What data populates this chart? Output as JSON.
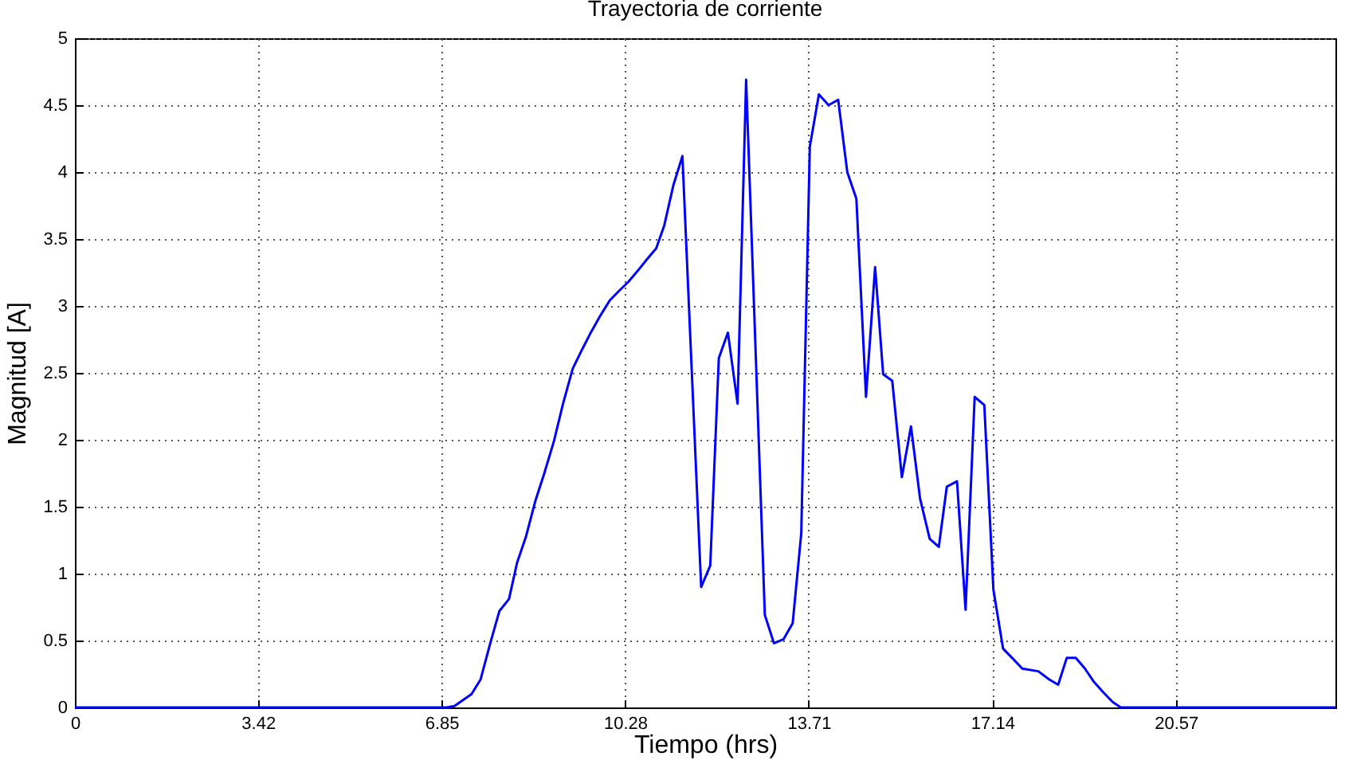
{
  "chart_data": {
    "type": "line",
    "title": "Trayectoria de corriente",
    "xlabel": "Tiempo (hrs)",
    "ylabel": "Magnitud [A]",
    "x": [
      0,
      6.94,
      7.09,
      7.41,
      7.58,
      7.76,
      7.93,
      8.11,
      8.26,
      8.43,
      8.6,
      8.77,
      8.95,
      9.12,
      9.3,
      9.47,
      9.65,
      9.82,
      9.99,
      10.16,
      10.34,
      10.51,
      10.69,
      10.86,
      11.01,
      11.18,
      11.35,
      11.7,
      11.87,
      12.03,
      12.2,
      12.38,
      12.54,
      12.89,
      13.06,
      13.24,
      13.41,
      13.57,
      13.73,
      13.9,
      14.08,
      14.26,
      14.43,
      14.6,
      14.78,
      14.95,
      15.1,
      15.27,
      15.45,
      15.62,
      15.79,
      15.97,
      16.14,
      16.29,
      16.48,
      16.64,
      16.81,
      16.99,
      17.16,
      17.34,
      17.51,
      17.7,
      18.0,
      18.2,
      18.37,
      18.53,
      18.7,
      18.87,
      19.04,
      19.22,
      19.39,
      19.54,
      23.55
    ],
    "series": [
      {
        "color": "#0000ff",
        "values": [
          0,
          0,
          0.01,
          0.1,
          0.21,
          0.48,
          0.72,
          0.81,
          1.08,
          1.28,
          1.54,
          1.75,
          1.99,
          2.27,
          2.53,
          2.67,
          2.81,
          2.93,
          3.04,
          3.11,
          3.18,
          3.26,
          3.35,
          3.43,
          3.6,
          3.9,
          4.12,
          0.9,
          1.06,
          2.61,
          2.8,
          2.27,
          4.69,
          0.69,
          0.48,
          0.51,
          0.63,
          1.3,
          4.19,
          4.58,
          4.5,
          4.54,
          4.0,
          3.8,
          2.32,
          3.29,
          2.49,
          2.44,
          1.72,
          2.1,
          1.56,
          1.26,
          1.2,
          1.65,
          1.69,
          0.73,
          2.32,
          2.26,
          0.88,
          0.44,
          0.37,
          0.29,
          0.27,
          0.21,
          0.17,
          0.37,
          0.37,
          0.29,
          0.19,
          0.11,
          0.04,
          0,
          0
        ]
      }
    ],
    "xlim": [
      0,
      23.55
    ],
    "xticks": [
      0,
      3.42,
      6.85,
      10.28,
      13.71,
      17.14,
      20.57
    ],
    "ylim": [
      0,
      5
    ],
    "yticks": [
      0,
      0.5,
      1,
      1.5,
      2,
      2.5,
      3,
      3.5,
      4,
      4.5,
      5
    ],
    "grid": true,
    "line_style": "solid"
  }
}
